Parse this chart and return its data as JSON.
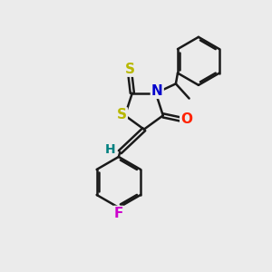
{
  "bg_color": "#ebebeb",
  "bond_color": "#1a1a1a",
  "bond_lw": 1.8,
  "atom_colors": {
    "S_ring": "#b8b800",
    "S_thioxo": "#b8b800",
    "N": "#0000cc",
    "O": "#ff2200",
    "F": "#cc00cc",
    "H": "#008080",
    "C": "#1a1a1a"
  },
  "xlim": [
    0,
    10
  ],
  "ylim": [
    0,
    10
  ]
}
